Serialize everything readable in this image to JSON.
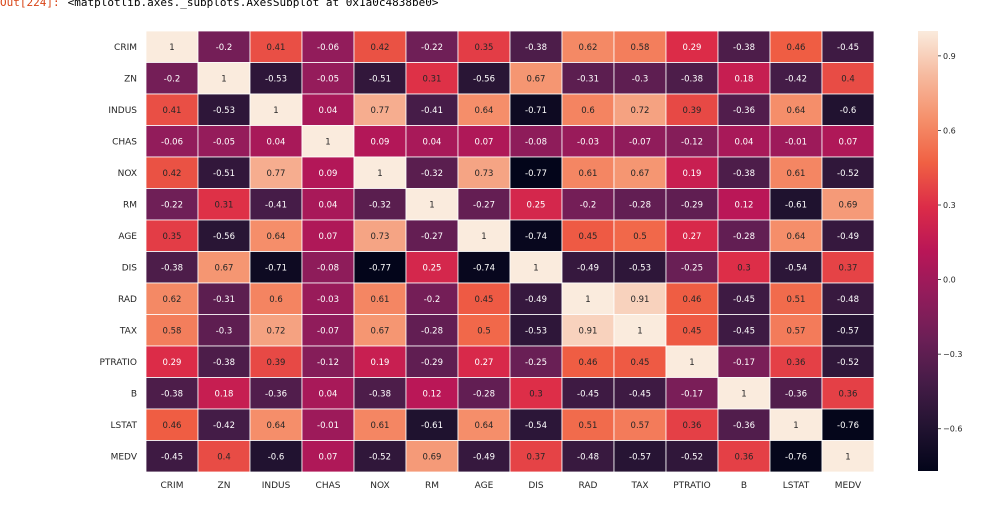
{
  "cell": {
    "prompt": "Out[224]:",
    "output_text": "<matplotlib.axes._subplots.AxesSubplot at 0x1a0c4838be0>"
  },
  "chart_data": {
    "type": "heatmap",
    "title": "",
    "xlabel": "",
    "ylabel": "",
    "colormap": "rocket",
    "annotated": true,
    "cell_borders": "white",
    "x_labels": [
      "CRIM",
      "ZN",
      "INDUS",
      "CHAS",
      "NOX",
      "RM",
      "AGE",
      "DIS",
      "RAD",
      "TAX",
      "PTRATIO",
      "B",
      "LSTAT",
      "MEDV"
    ],
    "y_labels": [
      "CRIM",
      "ZN",
      "INDUS",
      "CHAS",
      "NOX",
      "RM",
      "AGE",
      "DIS",
      "RAD",
      "TAX",
      "PTRATIO",
      "B",
      "LSTAT",
      "MEDV"
    ],
    "values": [
      [
        1,
        -0.2,
        0.41,
        -0.06,
        0.42,
        -0.22,
        0.35,
        -0.38,
        0.62,
        0.58,
        0.29,
        -0.38,
        0.46,
        -0.45
      ],
      [
        -0.2,
        1,
        -0.53,
        -0.05,
        -0.51,
        0.31,
        -0.56,
        0.67,
        -0.31,
        -0.3,
        -0.38,
        0.18,
        -0.42,
        0.4
      ],
      [
        0.41,
        -0.53,
        1,
        0.04,
        0.77,
        -0.41,
        0.64,
        -0.71,
        0.6,
        0.72,
        0.39,
        -0.36,
        0.64,
        -0.6
      ],
      [
        -0.06,
        -0.05,
        0.04,
        1,
        0.09,
        0.04,
        0.07,
        -0.08,
        -0.03,
        -0.07,
        -0.12,
        0.04,
        -0.01,
        0.07
      ],
      [
        0.42,
        -0.51,
        0.77,
        0.09,
        1,
        -0.32,
        0.73,
        -0.77,
        0.61,
        0.67,
        0.19,
        -0.38,
        0.61,
        -0.52
      ],
      [
        -0.22,
        0.31,
        -0.41,
        0.04,
        -0.32,
        1,
        -0.27,
        0.25,
        -0.2,
        -0.28,
        -0.29,
        0.12,
        -0.61,
        0.69
      ],
      [
        0.35,
        -0.56,
        0.64,
        0.07,
        0.73,
        -0.27,
        1,
        -0.74,
        0.45,
        0.5,
        0.27,
        -0.28,
        0.64,
        -0.49
      ],
      [
        -0.38,
        0.67,
        -0.71,
        -0.08,
        -0.77,
        0.25,
        -0.74,
        1,
        -0.49,
        -0.53,
        -0.25,
        0.3,
        -0.54,
        0.37
      ],
      [
        0.62,
        -0.31,
        0.6,
        -0.03,
        0.61,
        -0.2,
        0.45,
        -0.49,
        1,
        0.91,
        0.46,
        -0.45,
        0.51,
        -0.48
      ],
      [
        0.58,
        -0.3,
        0.72,
        -0.07,
        0.67,
        -0.28,
        0.5,
        -0.53,
        0.91,
        1,
        0.45,
        -0.45,
        0.57,
        -0.57
      ],
      [
        0.29,
        -0.38,
        0.39,
        -0.12,
        0.19,
        -0.29,
        0.27,
        -0.25,
        0.46,
        0.45,
        1,
        -0.17,
        0.36,
        -0.52
      ],
      [
        -0.38,
        0.18,
        -0.36,
        0.04,
        -0.38,
        0.12,
        -0.28,
        0.3,
        -0.45,
        -0.45,
        -0.17,
        1,
        -0.36,
        0.36
      ],
      [
        0.46,
        -0.42,
        0.64,
        -0.01,
        0.61,
        -0.61,
        0.64,
        -0.54,
        0.51,
        0.57,
        0.36,
        -0.36,
        1,
        -0.76
      ],
      [
        -0.45,
        0.4,
        -0.6,
        0.07,
        -0.52,
        0.69,
        -0.49,
        0.37,
        -0.48,
        -0.57,
        -0.52,
        0.36,
        -0.76,
        1
      ]
    ],
    "colorbar": {
      "range": [
        -0.77,
        1
      ],
      "ticks": [
        0.9,
        0.6,
        0.3,
        0.0,
        -0.3,
        -0.6
      ],
      "tick_labels": [
        "0.9",
        "0.6",
        "0.3",
        "0.0",
        "−0.3",
        "−0.6"
      ]
    }
  }
}
